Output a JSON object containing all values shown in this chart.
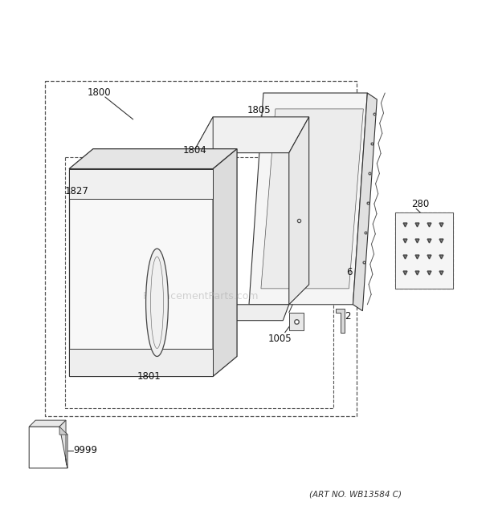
{
  "bg_color": "#ffffff",
  "art_no": "(ART NO. WB13584 C)",
  "watermark": "ReplacementParts.com",
  "line_color": "#333333",
  "dash_color": "#555555"
}
